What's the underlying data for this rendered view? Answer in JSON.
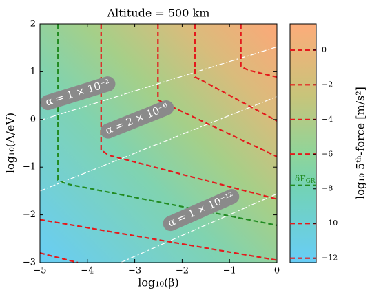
{
  "chart_data": {
    "type": "contour",
    "title": "Altitude = 500 km",
    "xlabel": "log₁₀(β)",
    "ylabel": "log₁₀(Λ/eV)",
    "xlim": [
      -5,
      0
    ],
    "ylim": [
      -3,
      2
    ],
    "xticks": [
      {
        "value": -5,
        "label": "−5"
      },
      {
        "value": -4,
        "label": "−4"
      },
      {
        "value": -3,
        "label": "−3"
      },
      {
        "value": -2,
        "label": "−2"
      },
      {
        "value": -1,
        "label": "−1"
      },
      0
    ],
    "yticks": [
      {
        "value": -3,
        "label": "−3"
      },
      {
        "value": -2,
        "label": "−2"
      },
      {
        "value": -1,
        "label": "−1"
      },
      0,
      1,
      2
    ],
    "contours": [
      {
        "color": "#e41a1c",
        "x": [
          -5,
          0
        ],
        "y": [
          -2.1,
          -2.95
        ]
      },
      {
        "color": "#e41a1c",
        "x": [
          -5,
          -4.2
        ],
        "y": [
          -2.8,
          -3
        ]
      },
      {
        "color": "#e41a1c",
        "x": [
          -3.71,
          -3.71,
          -3.55,
          0
        ],
        "y": [
          2,
          -0.64,
          -0.75,
          -1.67
        ]
      },
      {
        "color": "#e41a1c",
        "x": [
          -2.51,
          -2.51,
          -2.35,
          0
        ],
        "y": [
          2,
          0.41,
          0.33,
          -0.78
        ]
      },
      {
        "color": "#e41a1c",
        "x": [
          -1.73,
          -1.73,
          -1.55,
          0
        ],
        "y": [
          2,
          0.89,
          0.8,
          -0.03
        ]
      },
      {
        "color": "#e41a1c",
        "x": [
          -0.76,
          -0.76,
          -0.6,
          0
        ],
        "y": [
          2,
          1.11,
          1.03,
          0.89
        ]
      },
      {
        "color": "#228b22",
        "x": [
          -4.62,
          -4.62,
          -4.45,
          0
        ],
        "y": [
          2,
          -1.27,
          -1.35,
          -2.22
        ]
      }
    ],
    "alpha_lines": [
      {
        "x": [
          -5,
          0
        ],
        "y": [
          -0.02,
          1.52
        ],
        "label": "α = 1 × 10⁻²",
        "label_x": -4.2,
        "label_y": 0.55
      },
      {
        "x": [
          -5,
          0
        ],
        "y": [
          -1.5,
          0.48
        ],
        "label": "α = 2 × 10⁻⁶",
        "label_x": -2.95,
        "label_y": 0.0
      },
      {
        "x": [
          -3.3,
          0
        ],
        "y": [
          -3,
          -1.56
        ],
        "label": "α = 1 × 10⁻¹²",
        "label_x": -1.6,
        "label_y": -1.9
      }
    ],
    "colorbar": {
      "label": "log₁₀ 5ᵗʰ-force [m/s²]",
      "lim": [
        -12.25,
        1.5
      ],
      "ticks": [
        0,
        {
          "value": -2,
          "label": "−2"
        },
        {
          "value": -4,
          "label": "−4"
        },
        {
          "value": -6,
          "label": "−6"
        },
        {
          "value": -8,
          "label": "−8"
        },
        {
          "value": -10,
          "label": "−10"
        },
        {
          "value": -12,
          "label": "−12"
        }
      ],
      "lines": [
        {
          "value": 0,
          "color": "#e41a1c"
        },
        {
          "value": -2,
          "color": "#e41a1c"
        },
        {
          "value": -4,
          "color": "#e41a1c"
        },
        {
          "value": -6,
          "color": "#e41a1c"
        },
        {
          "value": -7.8,
          "color": "#228b22"
        },
        {
          "value": -10,
          "color": "#e41a1c"
        },
        {
          "value": -12,
          "color": "#e41a1c"
        }
      ],
      "marker_text": "δF",
      "marker_sub": "GR"
    }
  }
}
